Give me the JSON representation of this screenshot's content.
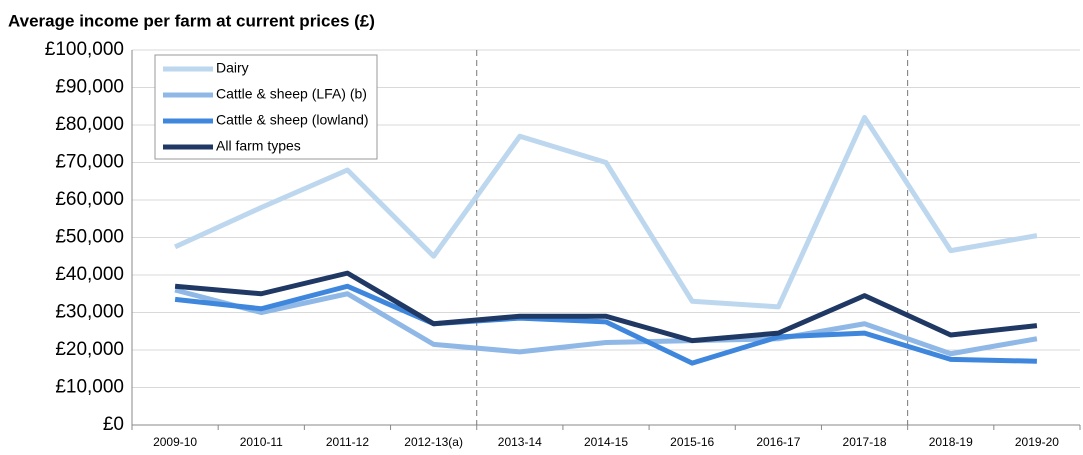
{
  "chart_data": {
    "type": "line",
    "title": "Average income per farm at current prices (£)",
    "categories": [
      "2009-10",
      "2010-11",
      "2011-12",
      "2012-13(a)",
      "2013-14",
      "2014-15",
      "2015-16",
      "2016-17",
      "2017-18",
      "2018-19",
      "2019-20"
    ],
    "series": [
      {
        "name": "Dairy",
        "color": "#bdd7ee",
        "values": [
          47500,
          58000,
          68000,
          45000,
          77000,
          70000,
          33000,
          31500,
          82000,
          46500,
          50500
        ]
      },
      {
        "name": "Cattle & sheep (LFA) (b)",
        "color": "#8fb8e6",
        "values": [
          36000,
          30000,
          35000,
          21500,
          19500,
          22000,
          22500,
          23000,
          27000,
          19000,
          23000
        ]
      },
      {
        "name": "Cattle & sheep (lowland)",
        "color": "#3f87dc",
        "values": [
          33500,
          31000,
          37000,
          27000,
          28500,
          27500,
          16500,
          23500,
          24500,
          17500,
          17000
        ]
      },
      {
        "name": "All farm types",
        "color": "#1f3864",
        "values": [
          37000,
          35000,
          40500,
          27000,
          29000,
          29000,
          22500,
          24500,
          34500,
          24000,
          26500
        ]
      }
    ],
    "ylim": [
      0,
      100000
    ],
    "yticks": [
      {
        "value": 0,
        "label": "£0"
      },
      {
        "value": 10000,
        "label": "£10,000"
      },
      {
        "value": 20000,
        "label": "£20,000"
      },
      {
        "value": 30000,
        "label": "£30,000"
      },
      {
        "value": 40000,
        "label": "£40,000"
      },
      {
        "value": 50000,
        "label": "£50,000"
      },
      {
        "value": 60000,
        "label": "£60,000"
      },
      {
        "value": 70000,
        "label": "£70,000"
      },
      {
        "value": 80000,
        "label": "£80,000"
      },
      {
        "value": 90000,
        "label": "£90,000"
      },
      {
        "value": 100000,
        "label": "£100,000"
      }
    ],
    "grid": true,
    "legend": "upper left"
  }
}
